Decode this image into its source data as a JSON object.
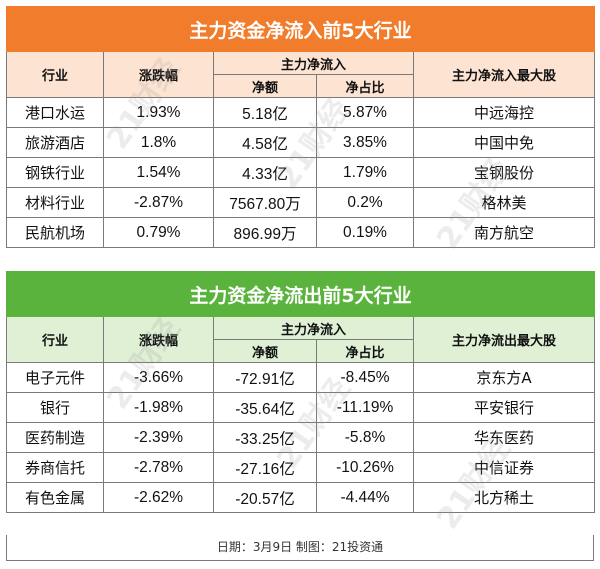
{
  "inflow": {
    "title": "主力资金净流入前5大行业",
    "headers": {
      "industry": "行业",
      "change": "涨跌幅",
      "net_group": "主力净流入",
      "net_amount": "净额",
      "net_ratio": "净占比",
      "top_stock": "主力净流入最大股"
    },
    "rows": [
      {
        "industry": "港口水运",
        "change": "1.93%",
        "net_amount": "5.18亿",
        "net_ratio": "5.87%",
        "top_stock": "中远海控"
      },
      {
        "industry": "旅游酒店",
        "change": "1.8%",
        "net_amount": "4.58亿",
        "net_ratio": "3.85%",
        "top_stock": "中国中免"
      },
      {
        "industry": "钢铁行业",
        "change": "1.54%",
        "net_amount": "4.33亿",
        "net_ratio": "1.79%",
        "top_stock": "宝钢股份"
      },
      {
        "industry": "材料行业",
        "change": "-2.87%",
        "net_amount": "7567.80万",
        "net_ratio": "0.2%",
        "top_stock": "格林美"
      },
      {
        "industry": "民航机场",
        "change": "0.79%",
        "net_amount": "896.99万",
        "net_ratio": "0.19%",
        "top_stock": "南方航空"
      }
    ]
  },
  "outflow": {
    "title": "主力资金净流出前5大行业",
    "headers": {
      "industry": "行业",
      "change": "涨跌幅",
      "net_group": "主力净流入",
      "net_amount": "净额",
      "net_ratio": "净占比",
      "top_stock": "主力净流出最大股"
    },
    "rows": [
      {
        "industry": "电子元件",
        "change": "-3.66%",
        "net_amount": "-72.91亿",
        "net_ratio": "-8.45%",
        "top_stock": "京东方A"
      },
      {
        "industry": "银行",
        "change": "-1.98%",
        "net_amount": "-35.64亿",
        "net_ratio": "-11.19%",
        "top_stock": "平安银行"
      },
      {
        "industry": "医药制造",
        "change": "-2.39%",
        "net_amount": "-33.25亿",
        "net_ratio": "-5.8%",
        "top_stock": "华东医药"
      },
      {
        "industry": "券商信托",
        "change": "-2.78%",
        "net_amount": "-27.16亿",
        "net_ratio": "-10.26%",
        "top_stock": "中信证券"
      },
      {
        "industry": "有色金属",
        "change": "-2.62%",
        "net_amount": "-20.57亿",
        "net_ratio": "-4.44%",
        "top_stock": "北方稀土"
      }
    ]
  },
  "footer": "日期：3月9日  制图：21投资通",
  "watermark": "21财经",
  "colors": {
    "inflow_title": "#f07c2c",
    "inflow_header": "#fde4d2",
    "outflow_title": "#5ab33d",
    "outflow_header": "#dff0d5"
  }
}
